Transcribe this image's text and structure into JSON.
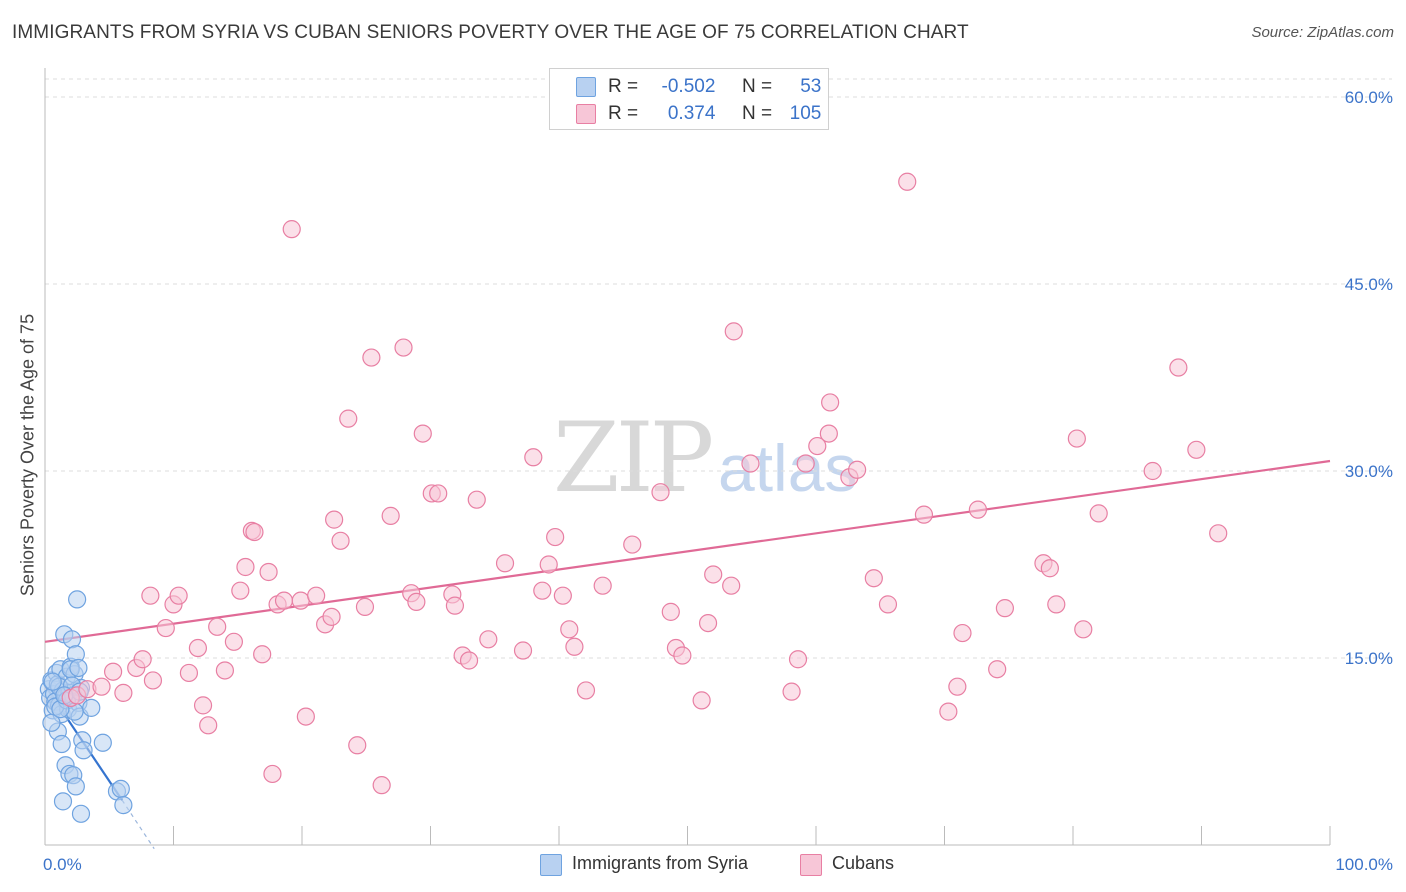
{
  "chart_data": {
    "type": "scatter",
    "title": "IMMIGRANTS FROM SYRIA VS CUBAN SENIORS POVERTY OVER THE AGE OF 75 CORRELATION CHART",
    "source": "Source: ZipAtlas.com",
    "xlabel": "",
    "ylabel": "Seniors Poverty Over the Age of 75",
    "xlim": [
      0,
      100
    ],
    "ylim": [
      0,
      60
    ],
    "x_tick_labels": [
      "0.0%",
      "100.0%"
    ],
    "y_ticks": [
      15,
      30,
      45,
      60
    ],
    "y_tick_labels": [
      "15.0%",
      "30.0%",
      "45.0%",
      "60.0%"
    ],
    "grid": true,
    "watermark": {
      "main": "ZIP",
      "sub": "atlas"
    },
    "legend": [
      {
        "r_label": "R =",
        "r": "-0.502",
        "n_label": "N =",
        "n": "53"
      },
      {
        "r_label": "R =",
        "r": "0.374",
        "n_label": "N =",
        "n": "105"
      }
    ],
    "series": [
      {
        "name": "Immigrants from Syria",
        "color": "#6fa3e0",
        "fill": "#b8d1f1",
        "line_color": "#3574cf",
        "trend": {
          "x": [
            0.0,
            6.0
          ],
          "y": [
            12.8,
            3.6
          ]
        },
        "trend_dashed": {
          "x": [
            6.0,
            8.5
          ],
          "y": [
            3.6,
            -0.3
          ]
        },
        "points": [
          [
            0.3,
            12.5
          ],
          [
            0.4,
            11.8
          ],
          [
            0.5,
            13.2
          ],
          [
            0.6,
            10.8
          ],
          [
            0.7,
            12.1
          ],
          [
            0.8,
            11.5
          ],
          [
            0.9,
            13.8
          ],
          [
            1.0,
            12.9
          ],
          [
            1.1,
            11.2
          ],
          [
            1.2,
            14.1
          ],
          [
            1.3,
            10.5
          ],
          [
            1.4,
            12.4
          ],
          [
            1.5,
            16.9
          ],
          [
            1.6,
            11.9
          ],
          [
            1.7,
            13.5
          ],
          [
            1.8,
            10.9
          ],
          [
            1.9,
            12.2
          ],
          [
            2.0,
            14.3
          ],
          [
            2.1,
            16.5
          ],
          [
            2.2,
            12.0
          ],
          [
            2.3,
            13.7
          ],
          [
            2.4,
            15.3
          ],
          [
            2.5,
            19.7
          ],
          [
            2.6,
            11.4
          ],
          [
            2.7,
            10.3
          ],
          [
            2.8,
            12.6
          ],
          [
            2.9,
            8.4
          ],
          [
            3.0,
            7.6
          ],
          [
            1.0,
            9.1
          ],
          [
            1.3,
            8.1
          ],
          [
            1.6,
            6.4
          ],
          [
            1.9,
            5.7
          ],
          [
            2.2,
            5.6
          ],
          [
            2.4,
            4.7
          ],
          [
            2.8,
            2.5
          ],
          [
            1.4,
            3.5
          ],
          [
            2.0,
            14.1
          ],
          [
            2.6,
            14.2
          ],
          [
            0.5,
            9.8
          ],
          [
            0.8,
            11.1
          ],
          [
            1.1,
            12.7
          ],
          [
            1.7,
            11.6
          ],
          [
            2.1,
            12.8
          ],
          [
            2.3,
            10.7
          ],
          [
            2.7,
            12.3
          ],
          [
            3.6,
            11.0
          ],
          [
            4.5,
            8.2
          ],
          [
            5.6,
            4.3
          ],
          [
            5.9,
            4.5
          ],
          [
            6.1,
            3.2
          ],
          [
            0.6,
            13.1
          ],
          [
            1.2,
            10.9
          ],
          [
            1.5,
            12.0
          ]
        ]
      },
      {
        "name": "Cubans",
        "color": "#e87fa3",
        "fill": "#f7c6d7",
        "line_color": "#e06a96",
        "trend": {
          "x": [
            0.0,
            100.0
          ],
          "y": [
            16.3,
            30.8
          ]
        },
        "points": [
          [
            2.0,
            11.8
          ],
          [
            2.5,
            12.0
          ],
          [
            3.3,
            12.5
          ],
          [
            4.4,
            12.7
          ],
          [
            5.3,
            13.9
          ],
          [
            6.1,
            12.2
          ],
          [
            7.1,
            14.2
          ],
          [
            7.6,
            14.9
          ],
          [
            8.2,
            20.0
          ],
          [
            8.4,
            13.2
          ],
          [
            9.4,
            17.4
          ],
          [
            10.0,
            19.3
          ],
          [
            10.4,
            20.0
          ],
          [
            11.2,
            13.8
          ],
          [
            11.9,
            15.8
          ],
          [
            12.3,
            11.2
          ],
          [
            12.7,
            9.6
          ],
          [
            13.4,
            17.5
          ],
          [
            14.0,
            14.0
          ],
          [
            14.7,
            16.3
          ],
          [
            15.2,
            20.4
          ],
          [
            15.6,
            22.3
          ],
          [
            16.1,
            25.2
          ],
          [
            16.3,
            25.1
          ],
          [
            16.9,
            15.3
          ],
          [
            17.4,
            21.9
          ],
          [
            17.7,
            5.7
          ],
          [
            18.1,
            19.3
          ],
          [
            18.6,
            19.6
          ],
          [
            19.2,
            49.4
          ],
          [
            19.9,
            19.6
          ],
          [
            20.3,
            10.3
          ],
          [
            21.1,
            20.0
          ],
          [
            21.8,
            17.7
          ],
          [
            22.3,
            18.3
          ],
          [
            22.5,
            26.1
          ],
          [
            23.0,
            24.4
          ],
          [
            23.6,
            34.2
          ],
          [
            24.3,
            8.0
          ],
          [
            24.9,
            19.1
          ],
          [
            25.4,
            39.1
          ],
          [
            26.2,
            4.8
          ],
          [
            26.9,
            26.4
          ],
          [
            27.9,
            39.9
          ],
          [
            28.5,
            20.2
          ],
          [
            28.9,
            19.5
          ],
          [
            29.4,
            33.0
          ],
          [
            30.1,
            28.2
          ],
          [
            30.6,
            28.2
          ],
          [
            31.7,
            20.1
          ],
          [
            31.9,
            19.2
          ],
          [
            32.5,
            15.2
          ],
          [
            33.0,
            14.8
          ],
          [
            33.6,
            27.7
          ],
          [
            34.5,
            16.5
          ],
          [
            35.8,
            22.6
          ],
          [
            37.2,
            15.6
          ],
          [
            38.0,
            31.1
          ],
          [
            38.7,
            20.4
          ],
          [
            39.2,
            22.5
          ],
          [
            39.7,
            24.7
          ],
          [
            40.3,
            20.0
          ],
          [
            40.8,
            17.3
          ],
          [
            41.2,
            15.9
          ],
          [
            42.1,
            12.4
          ],
          [
            43.4,
            20.8
          ],
          [
            45.7,
            24.1
          ],
          [
            47.9,
            28.3
          ],
          [
            48.7,
            18.7
          ],
          [
            49.1,
            15.8
          ],
          [
            49.6,
            15.2
          ],
          [
            51.1,
            11.6
          ],
          [
            51.6,
            17.8
          ],
          [
            52.0,
            21.7
          ],
          [
            53.6,
            41.2
          ],
          [
            53.4,
            20.8
          ],
          [
            54.9,
            30.6
          ],
          [
            58.1,
            12.3
          ],
          [
            58.6,
            14.9
          ],
          [
            59.2,
            30.6
          ],
          [
            60.1,
            32.0
          ],
          [
            61.1,
            35.5
          ],
          [
            62.6,
            29.5
          ],
          [
            63.2,
            30.1
          ],
          [
            65.6,
            19.3
          ],
          [
            68.4,
            26.5
          ],
          [
            70.3,
            10.7
          ],
          [
            71.0,
            12.7
          ],
          [
            71.4,
            17.0
          ],
          [
            72.6,
            26.9
          ],
          [
            74.1,
            14.1
          ],
          [
            74.7,
            19.0
          ],
          [
            77.7,
            22.6
          ],
          [
            78.2,
            22.2
          ],
          [
            78.7,
            19.3
          ],
          [
            80.3,
            32.6
          ],
          [
            80.8,
            17.3
          ],
          [
            82.0,
            26.6
          ],
          [
            86.2,
            30.0
          ],
          [
            88.2,
            38.3
          ],
          [
            89.6,
            31.7
          ],
          [
            91.3,
            25.0
          ],
          [
            61.0,
            33.0
          ],
          [
            67.1,
            53.2
          ],
          [
            64.5,
            21.4
          ]
        ]
      }
    ]
  }
}
